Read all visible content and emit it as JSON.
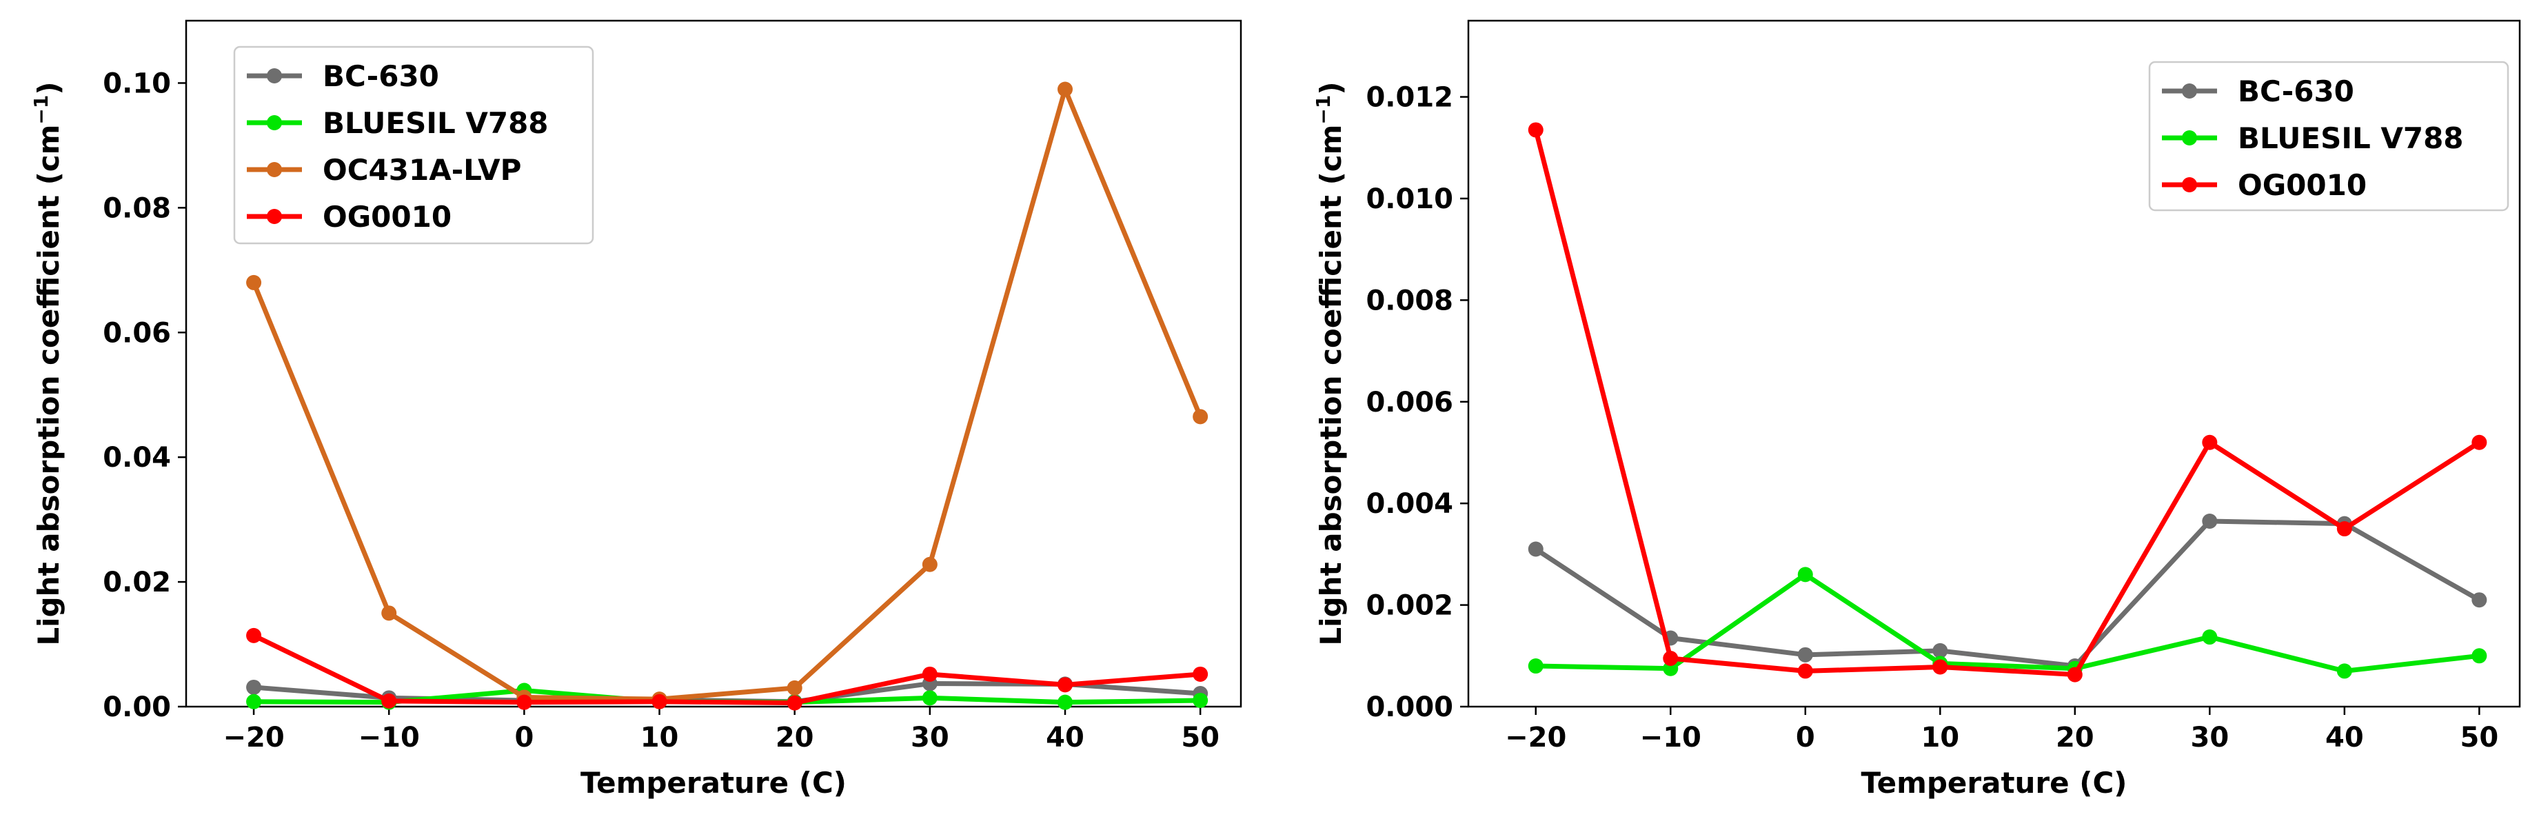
{
  "chart_data": [
    {
      "type": "line",
      "title": "",
      "xlabel": "Temperature (C)",
      "ylabel": "Light absorption coefficient (cm",
      "ylabel_sup": "−1",
      "ylabel_close": ")",
      "x": [
        -20,
        -10,
        0,
        10,
        20,
        30,
        40,
        50
      ],
      "xticks": [
        -20,
        -10,
        0,
        10,
        20,
        30,
        40,
        50
      ],
      "xtick_labels": [
        "−20",
        "−10",
        "0",
        "10",
        "20",
        "30",
        "40",
        "50"
      ],
      "xlim": [
        -25,
        53
      ],
      "yticks": [
        0,
        0.02,
        0.04,
        0.06,
        0.08,
        0.1
      ],
      "ytick_labels": [
        "0.00",
        "0.02",
        "0.04",
        "0.06",
        "0.08",
        "0.10"
      ],
      "ylim": [
        0,
        0.11
      ],
      "legend": "top-left",
      "series": [
        {
          "name": "BC-630",
          "color": "#6e6e6e",
          "values": [
            0.0031,
            0.0014,
            0.001,
            0.0011,
            0.0008,
            0.0037,
            0.0036,
            0.0021
          ]
        },
        {
          "name": "BLUESIL V788",
          "color": "#00e600",
          "values": [
            0.0008,
            0.0007,
            0.0026,
            0.0008,
            0.0007,
            0.0014,
            0.0007,
            0.001
          ]
        },
        {
          "name": "OC431A-LVP",
          "color": "#d2691e",
          "values": [
            0.068,
            0.015,
            0.0015,
            0.0012,
            0.003,
            0.0228,
            0.099,
            0.0465
          ]
        },
        {
          "name": "OG0010",
          "color": "#ff0000",
          "values": [
            0.0114,
            0.0009,
            0.0007,
            0.0008,
            0.0006,
            0.0052,
            0.0035,
            0.0052
          ]
        }
      ]
    },
    {
      "type": "line",
      "title": "",
      "xlabel": "Temperature (C)",
      "ylabel": "Light absorption coefficient (cm",
      "ylabel_sup": "−1",
      "ylabel_close": ")",
      "x": [
        -20,
        -10,
        0,
        10,
        20,
        30,
        40,
        50
      ],
      "xticks": [
        -20,
        -10,
        0,
        10,
        20,
        30,
        40,
        50
      ],
      "xtick_labels": [
        "−20",
        "−10",
        "0",
        "10",
        "20",
        "30",
        "40",
        "50"
      ],
      "xlim": [
        -25,
        53
      ],
      "yticks": [
        0,
        0.002,
        0.004,
        0.006,
        0.008,
        0.01,
        0.012
      ],
      "ytick_labels": [
        "0.000",
        "0.002",
        "0.004",
        "0.006",
        "0.008",
        "0.010",
        "0.012"
      ],
      "ylim": [
        0,
        0.0135
      ],
      "legend": "top-right",
      "series": [
        {
          "name": "BC-630",
          "color": "#6e6e6e",
          "values": [
            0.0031,
            0.00135,
            0.00102,
            0.0011,
            0.0008,
            0.00365,
            0.0036,
            0.0021
          ]
        },
        {
          "name": "BLUESIL V788",
          "color": "#00e600",
          "values": [
            0.0008,
            0.00075,
            0.0026,
            0.00085,
            0.00075,
            0.00137,
            0.0007,
            0.001
          ]
        },
        {
          "name": "OG0010",
          "color": "#ff0000",
          "values": [
            0.01135,
            0.00095,
            0.0007,
            0.00078,
            0.00063,
            0.0052,
            0.0035,
            0.0052
          ]
        }
      ]
    }
  ]
}
